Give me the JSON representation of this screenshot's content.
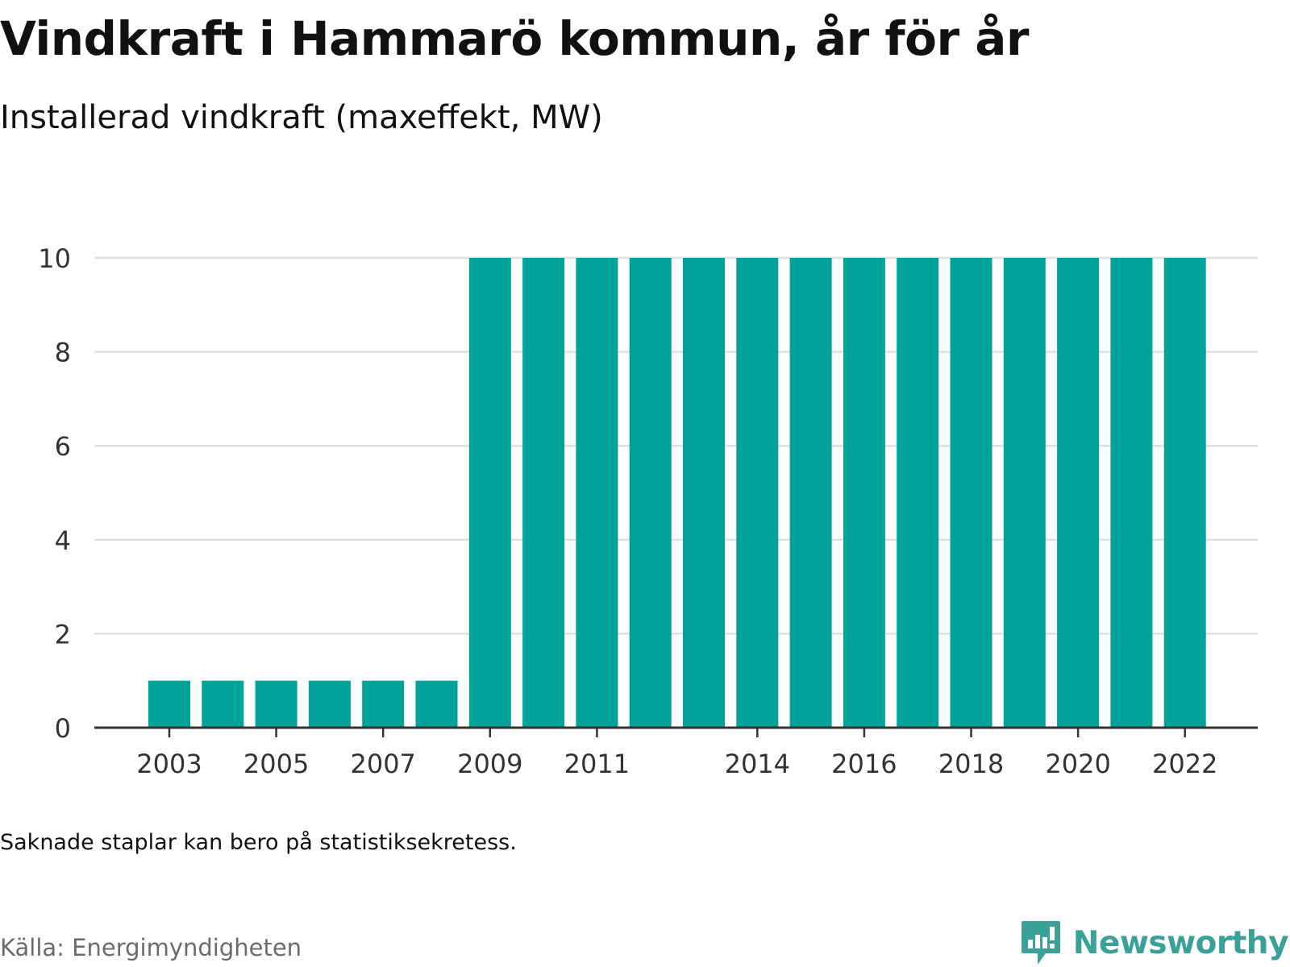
{
  "title": "Vindkraft i Hammarö kommun, år för år",
  "subtitle": "Installerad vindkraft (maxeffekt, MW)",
  "footnote": "Saknade staplar kan bero på statistiksekretess.",
  "source": "Källa: Energimyndigheten",
  "brand": {
    "name": "Newsworthy",
    "icon": "newsworthy-chart-bubble-icon"
  },
  "colors": {
    "bar": "#00a39a",
    "grid": "#e0e0e0",
    "axis": "#333333",
    "brand": "#3aa198",
    "source_text": "#6b6b6b"
  },
  "chart_data": {
    "type": "bar",
    "title": "Vindkraft i Hammarö kommun, år för år",
    "subtitle": "Installerad vindkraft (maxeffekt, MW)",
    "xlabel": "",
    "ylabel": "",
    "categories": [
      2003,
      2004,
      2005,
      2006,
      2007,
      2008,
      2009,
      2010,
      2011,
      2012,
      2013,
      2014,
      2015,
      2016,
      2017,
      2018,
      2019,
      2020,
      2021,
      2022
    ],
    "values": [
      1,
      1,
      1,
      1,
      1,
      1,
      10,
      10,
      10,
      10,
      10,
      10,
      10,
      10,
      10,
      10,
      10,
      10,
      10,
      10
    ],
    "ylim": [
      0,
      10
    ],
    "yticks": [
      0,
      2,
      4,
      6,
      8,
      10
    ],
    "xticks": [
      2003,
      2005,
      2007,
      2009,
      2011,
      2014,
      2016,
      2018,
      2020,
      2022
    ],
    "grid": true,
    "legend": "none"
  }
}
